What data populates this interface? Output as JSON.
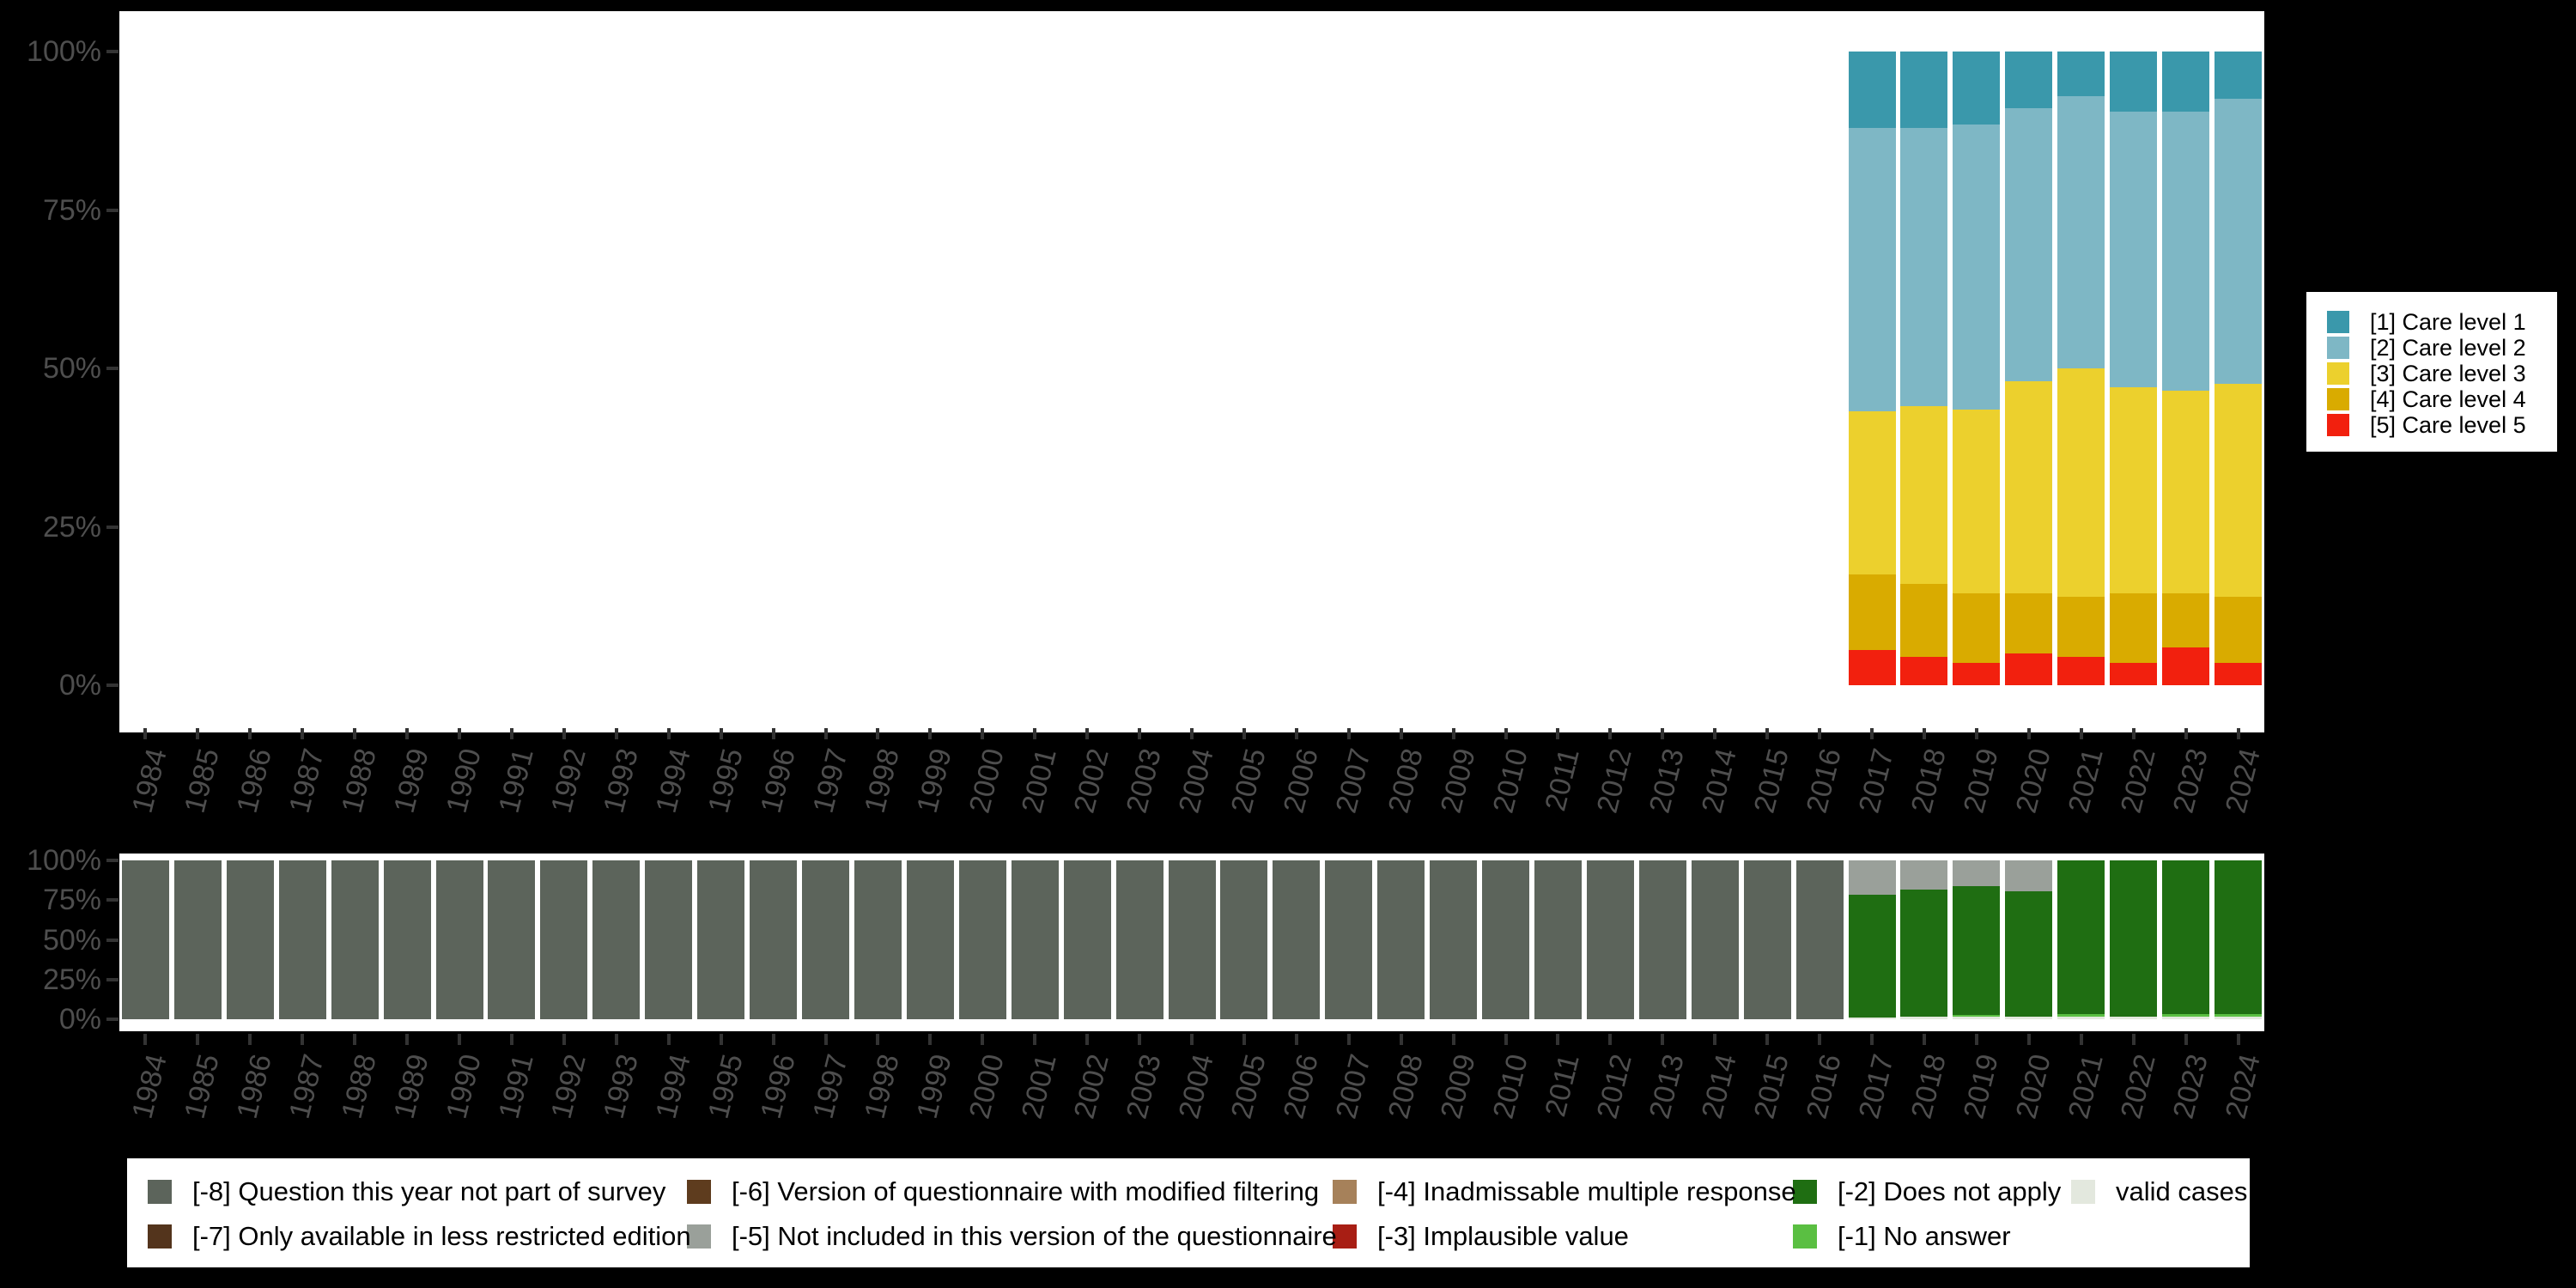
{
  "figure": {
    "background": "#000000",
    "plot_background": "#ffffff",
    "axis_text_color": "#4e4e4e",
    "tick_color": "#333333"
  },
  "axes": {
    "y_tick_labels": [
      "100%",
      "75%",
      "50%",
      "25%",
      "0%"
    ],
    "x_tick_labels": [
      "1984",
      "1985",
      "1986",
      "1987",
      "1988",
      "1989",
      "1990",
      "1991",
      "1992",
      "1993",
      "1994",
      "1995",
      "1996",
      "1997",
      "1998",
      "1999",
      "2000",
      "2001",
      "2002",
      "2003",
      "2004",
      "2005",
      "2006",
      "2007",
      "2008",
      "2009",
      "2010",
      "2011",
      "2012",
      "2013",
      "2014",
      "2015",
      "2016",
      "2017",
      "2018",
      "2019",
      "2020",
      "2021",
      "2022",
      "2023",
      "2024"
    ]
  },
  "care_legend": {
    "items": [
      {
        "label": "[1] Care level 1",
        "color": "#3a98ab"
      },
      {
        "label": "[2] Care level 2",
        "color": "#7eb7c5"
      },
      {
        "label": "[3] Care level 3",
        "color": "#ecd02d"
      },
      {
        "label": "[4] Care level 4",
        "color": "#d9ab00"
      },
      {
        "label": "[5] Care level 5",
        "color": "#f2200e"
      }
    ]
  },
  "missing_legend": {
    "columns": [
      {
        "items": [
          {
            "label": "[-8] Question this year not part of survey",
            "color": "#5c645b"
          },
          {
            "label": "[-7] Only available in less restricted edition",
            "color": "#53341c"
          }
        ]
      },
      {
        "items": [
          {
            "label": "[-6] Version of questionnaire with modified filtering",
            "color": "#5e3c1e"
          },
          {
            "label": "[-5] Not included in this version of the questionnaire",
            "color": "#9aa09a"
          }
        ]
      },
      {
        "items": [
          {
            "label": "[-4] Inadmissable multiple response",
            "color": "#a6815a"
          },
          {
            "label": "[-3] Implausible value",
            "color": "#a81e14"
          }
        ]
      },
      {
        "items": [
          {
            "label": "[-2] Does not apply",
            "color": "#1f6e12"
          },
          {
            "label": "[-1] No answer",
            "color": "#5abf42"
          }
        ]
      },
      {
        "items": [
          {
            "label": "valid cases",
            "color": "#e3e8de"
          }
        ]
      }
    ]
  },
  "chart_data": [
    {
      "type": "bar",
      "stacked": true,
      "unit": "percent of valid answers",
      "categories": [
        "2017",
        "2018",
        "2019",
        "2020",
        "2021",
        "2022",
        "2023",
        "2024"
      ],
      "ylim": [
        0,
        100
      ],
      "y_tick_labels": [
        "0%",
        "25%",
        "50%",
        "75%",
        "100%"
      ],
      "stack_order": "top-to-bottom",
      "series": [
        {
          "name": "[1] Care level 1",
          "color": "#3a98ab",
          "values": [
            12,
            12,
            11.5,
            9,
            7,
            9.5,
            9.5,
            7.5
          ]
        },
        {
          "name": "[2] Care level 2",
          "color": "#7eb7c5",
          "values": [
            44.8,
            44,
            45,
            43,
            43,
            43.5,
            44,
            45
          ]
        },
        {
          "name": "[3] Care level 3",
          "color": "#ecd02d",
          "values": [
            25.7,
            28,
            29,
            33.5,
            36,
            32.5,
            32,
            33.5
          ]
        },
        {
          "name": "[4] Care level 4",
          "color": "#d9ab00",
          "values": [
            12,
            11.5,
            11,
            9.5,
            9.5,
            11,
            8.5,
            10.5
          ]
        },
        {
          "name": "[5] Care level 5",
          "color": "#f2200e",
          "values": [
            5.5,
            4.5,
            3.5,
            5,
            4.5,
            3.5,
            6,
            3.5
          ]
        }
      ]
    },
    {
      "type": "bar",
      "stacked": true,
      "unit": "percent of all cases (missing values panel)",
      "categories": [
        "1984",
        "1985",
        "1986",
        "1987",
        "1988",
        "1989",
        "1990",
        "1991",
        "1992",
        "1993",
        "1994",
        "1995",
        "1996",
        "1997",
        "1998",
        "1999",
        "2000",
        "2001",
        "2002",
        "2003",
        "2004",
        "2005",
        "2006",
        "2007",
        "2008",
        "2009",
        "2010",
        "2011",
        "2012",
        "2013",
        "2014",
        "2015",
        "2016",
        "2017",
        "2018",
        "2019",
        "2020",
        "2021",
        "2022",
        "2023",
        "2024"
      ],
      "ylim": [
        0,
        100
      ],
      "y_tick_labels": [
        "0%",
        "25%",
        "50%",
        "75%",
        "100%"
      ],
      "stack_order": "top-to-bottom",
      "series": [
        {
          "name": "[-8] Question this year not part of survey",
          "color": "#5c645b",
          "values": [
            100,
            100,
            100,
            100,
            100,
            100,
            100,
            100,
            100,
            100,
            100,
            100,
            100,
            100,
            100,
            100,
            100,
            100,
            100,
            100,
            100,
            100,
            100,
            100,
            100,
            100,
            100,
            100,
            100,
            100,
            100,
            100,
            100,
            0,
            0,
            0,
            0,
            0,
            0,
            0,
            0
          ]
        },
        {
          "name": "[-5] Not included in this version of the questionnaire",
          "color": "#9aa09a",
          "values": [
            0,
            0,
            0,
            0,
            0,
            0,
            0,
            0,
            0,
            0,
            0,
            0,
            0,
            0,
            0,
            0,
            0,
            0,
            0,
            0,
            0,
            0,
            0,
            0,
            0,
            0,
            0,
            0,
            0,
            0,
            0,
            0,
            0,
            21.5,
            18.5,
            16,
            19.5,
            0,
            0,
            0,
            0
          ]
        },
        {
          "name": "[-2] Does not apply",
          "color": "#1f6e12",
          "values": [
            0,
            0,
            0,
            0,
            0,
            0,
            0,
            0,
            0,
            0,
            0,
            0,
            0,
            0,
            0,
            0,
            0,
            0,
            0,
            0,
            0,
            0,
            0,
            0,
            0,
            0,
            0,
            0,
            0,
            0,
            0,
            0,
            0,
            77.5,
            80,
            81.5,
            79,
            97,
            98.5,
            97,
            97
          ]
        },
        {
          "name": "[-1] No answer",
          "color": "#5abf42",
          "values": [
            0,
            0,
            0,
            0,
            0,
            0,
            0,
            0,
            0,
            0,
            0,
            0,
            0,
            0,
            0,
            0,
            0,
            0,
            0,
            0,
            0,
            0,
            0,
            0,
            0,
            0,
            0,
            0,
            0,
            0,
            0,
            0,
            0,
            0,
            0,
            1,
            0,
            1.5,
            0,
            1.5,
            1.5
          ]
        },
        {
          "name": "valid cases",
          "color": "#e3e8de",
          "values": [
            0,
            0,
            0,
            0,
            0,
            0,
            0,
            0,
            0,
            0,
            0,
            0,
            0,
            0,
            0,
            0,
            0,
            0,
            0,
            0,
            0,
            0,
            0,
            0,
            0,
            0,
            0,
            0,
            0,
            0,
            0,
            0,
            0,
            1,
            1.5,
            1.5,
            1.5,
            1.5,
            1.5,
            1.5,
            1.5
          ]
        }
      ]
    }
  ]
}
